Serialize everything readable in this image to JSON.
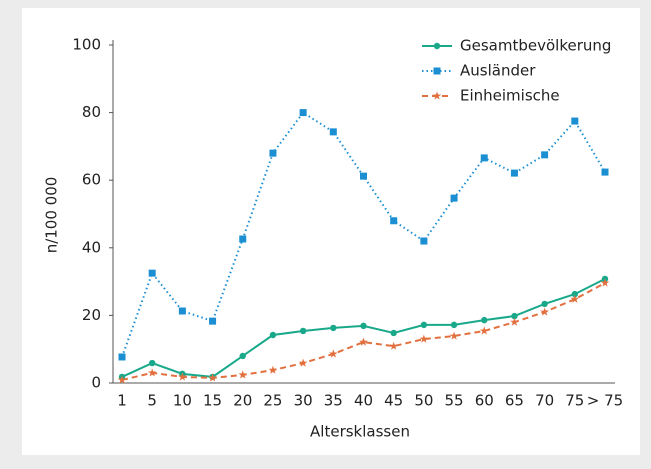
{
  "chart_data": {
    "type": "line",
    "x_label": "Altersklassen",
    "y_label": "n/100 000",
    "categories": [
      "1",
      "5",
      "10",
      "15",
      "20",
      "25",
      "30",
      "35",
      "40",
      "45",
      "50",
      "55",
      "60",
      "65",
      "70",
      "75",
      "> 75"
    ],
    "ylim": [
      0,
      100
    ],
    "yticks": [
      0,
      20,
      40,
      60,
      80,
      100
    ],
    "grid": false,
    "legend": "top-right",
    "series": [
      {
        "name": "Gesamtbevölkerung",
        "color": "#19a98a",
        "dash": "solid",
        "marker": "circle",
        "values": [
          1.8,
          5.9,
          2.7,
          1.8,
          8,
          14.2,
          15.4,
          16.3,
          16.9,
          14.8,
          17.2,
          17.2,
          18.6,
          19.8,
          23.4,
          26.3,
          30.8
        ]
      },
      {
        "name": "Ausländer",
        "color": "#1b8fd2",
        "dash": "dotted",
        "marker": "square",
        "values": [
          7.7,
          32.5,
          21.3,
          18.3,
          42.6,
          68,
          80,
          74.3,
          61.2,
          48,
          42,
          54.7,
          66.6,
          62.1,
          67.5,
          77.5,
          62.4
        ]
      },
      {
        "name": "Einheimische",
        "color": "#e2703f",
        "dash": "dashed",
        "marker": "star",
        "values": [
          0.9,
          3,
          1.8,
          1.5,
          2.4,
          3.8,
          5.9,
          8.6,
          12.1,
          10.9,
          13,
          13.9,
          15.4,
          18,
          21,
          24.8,
          29.6
        ]
      }
    ]
  }
}
